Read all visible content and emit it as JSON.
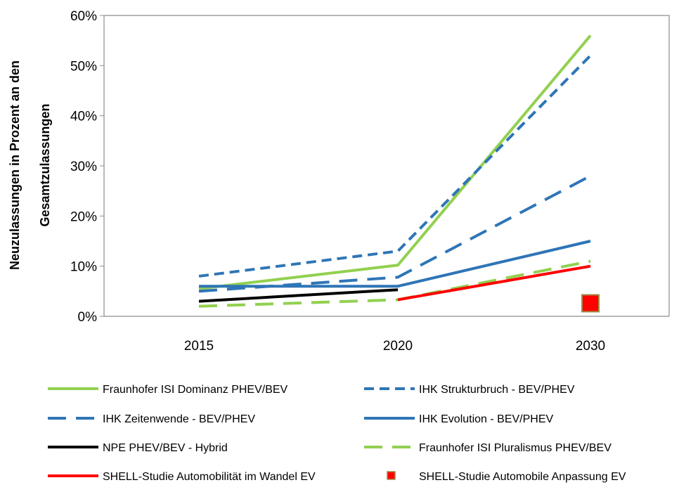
{
  "chart_data": {
    "type": "line",
    "x": [
      "2015",
      "2020",
      "2030"
    ],
    "ylabel_line1": "Neuzulassungen in Prozent an den",
    "ylabel_line2": "Gesamtzulassungen",
    "ylim": [
      0,
      60
    ],
    "yticks": [
      "0%",
      "10%",
      "20%",
      "30%",
      "40%",
      "50%",
      "60%"
    ],
    "grid": false,
    "legend_position": "bottom",
    "series": [
      {
        "name": "Fraunhofer ISI Dominanz PHEV/BEV",
        "color": "#92d050",
        "style": "solid",
        "values": [
          5.5,
          10.2,
          56
        ]
      },
      {
        "name": "IHK Strukturbruch - BEV/PHEV",
        "color": "#2e75b6",
        "style": "short-dash",
        "values": [
          8,
          13,
          52
        ]
      },
      {
        "name": "IHK Zeitenwende - BEV/PHEV",
        "color": "#2e75b6",
        "style": "long-dash",
        "values": [
          5,
          7.8,
          28
        ]
      },
      {
        "name": "IHK Evolution - BEV/PHEV",
        "color": "#2e75b6",
        "style": "solid",
        "values": [
          6,
          6,
          15
        ]
      },
      {
        "name": "NPE PHEV/BEV - Hybrid",
        "color": "#000000",
        "style": "solid",
        "values": [
          3,
          5.3,
          null
        ]
      },
      {
        "name": "Fraunhofer ISI Pluralismus PHEV/BEV",
        "color": "#92d050",
        "style": "long-dash",
        "values": [
          2,
          3.3,
          11
        ]
      },
      {
        "name": "SHELL-Studie Automobilität im Wandel EV",
        "color": "#ff0000",
        "style": "solid",
        "values": [
          null,
          3.3,
          10
        ]
      },
      {
        "name": "SHELL-Studie Automobile Anpassung EV",
        "color": "#ff0000",
        "style": "marker",
        "values": [
          null,
          null,
          2.6
        ]
      }
    ]
  }
}
